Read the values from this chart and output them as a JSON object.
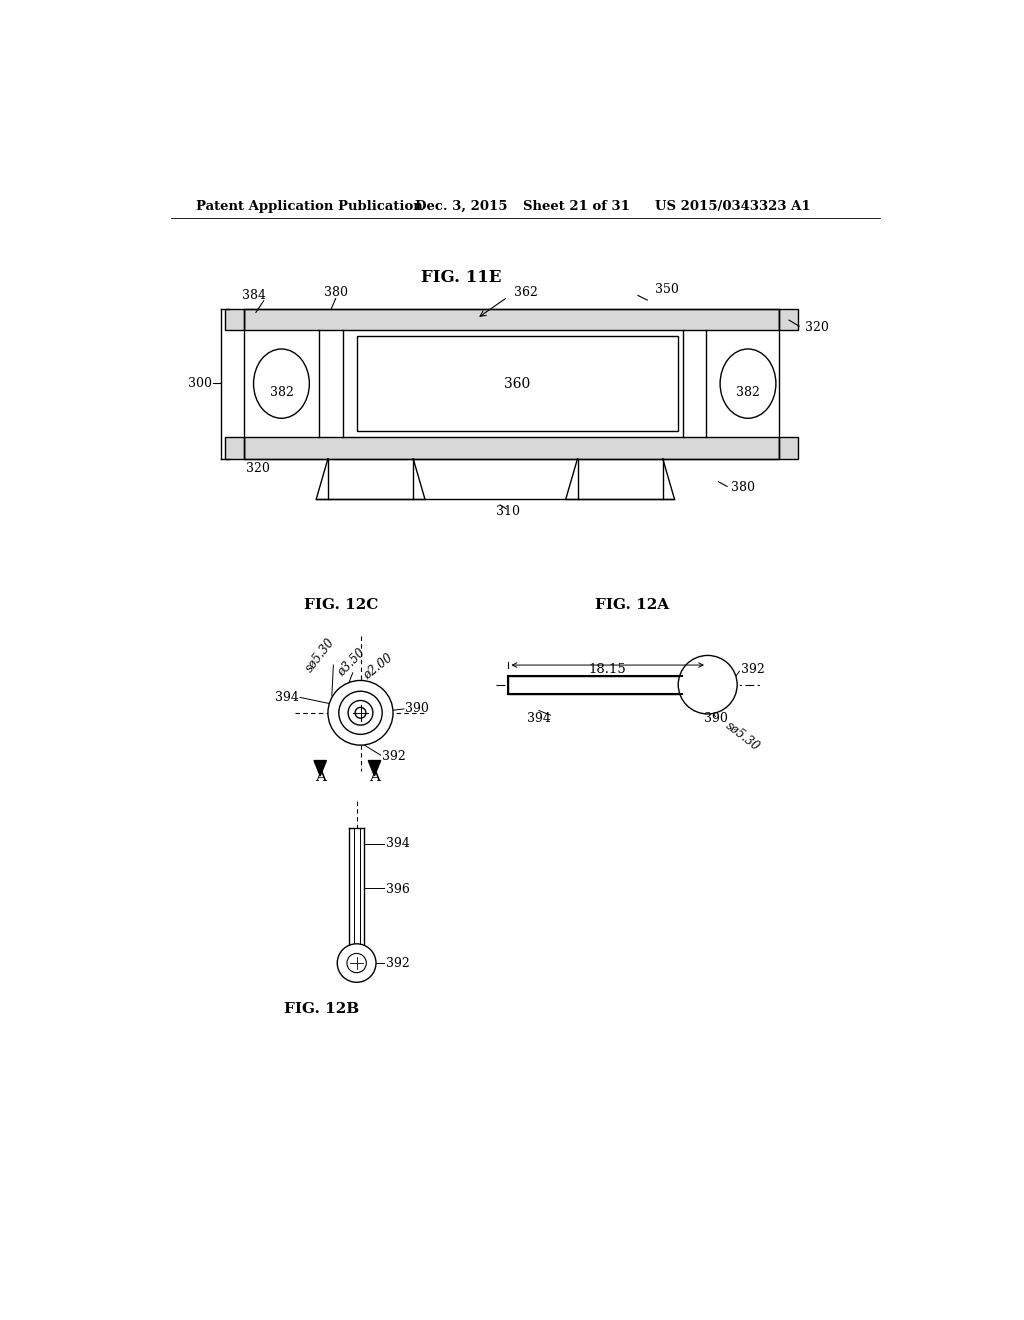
{
  "bg_color": "#ffffff",
  "header_text": "Patent Application Publication",
  "header_date": "Dec. 3, 2015",
  "header_sheet": "Sheet 21 of 31",
  "header_patent": "US 2015/0343323 A1",
  "fig11e_title": "FIG. 11E",
  "fig12c_title": "FIG. 12C",
  "fig12a_title": "FIG. 12A",
  "fig12b_title": "FIG. 12B"
}
